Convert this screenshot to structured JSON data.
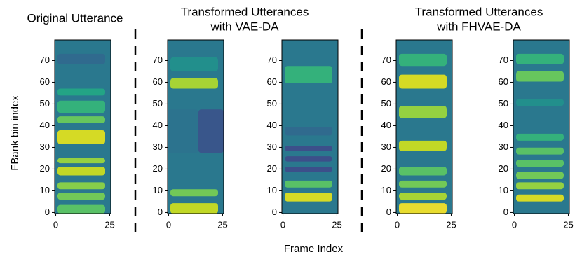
{
  "figure": {
    "xlabel": "Frame Index",
    "ylabel": "FBank bin index",
    "groups": [
      {
        "title": [
          "Transformed Utterances",
          "with VAE-DA"
        ]
      },
      {
        "title": [
          "Transformed Utterances",
          "with FHVAE-DA"
        ]
      }
    ]
  },
  "chart_data": [
    {
      "type": "heatmap",
      "title": "Original Utterance",
      "xlim": [
        -0.5,
        25.5
      ],
      "ylim": [
        -0.5,
        79.5
      ],
      "xticks": [
        0,
        25
      ],
      "yticks": [
        0,
        10,
        20,
        30,
        40,
        50,
        60,
        70
      ]
    },
    {
      "type": "heatmap",
      "xlim": [
        -0.5,
        25.5
      ],
      "ylim": [
        -0.5,
        79.5
      ],
      "xticks": [
        0,
        25
      ],
      "yticks": [
        0,
        10,
        20,
        30,
        40,
        50,
        60,
        70
      ]
    },
    {
      "type": "heatmap",
      "xlim": [
        -0.5,
        25.5
      ],
      "ylim": [
        -0.5,
        79.5
      ],
      "xticks": [
        0,
        25
      ],
      "yticks": [
        0,
        10,
        20,
        30,
        40,
        50,
        60,
        70
      ]
    },
    {
      "type": "heatmap",
      "xlim": [
        -0.5,
        25.5
      ],
      "ylim": [
        -0.5,
        79.5
      ],
      "xticks": [
        0,
        25
      ],
      "yticks": [
        0,
        10,
        20,
        30,
        40,
        50,
        60,
        70
      ]
    },
    {
      "type": "heatmap",
      "xlim": [
        -0.5,
        25.5
      ],
      "ylim": [
        -0.5,
        79.5
      ],
      "xticks": [
        0,
        25
      ],
      "yticks": [
        0,
        10,
        20,
        30,
        40,
        50,
        60,
        70
      ]
    }
  ]
}
